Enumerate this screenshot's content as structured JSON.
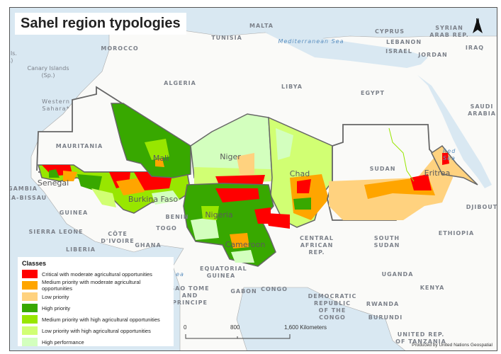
{
  "title": "Sahel region typologies",
  "legend": {
    "heading": "Classes",
    "items": [
      {
        "label": "Critical with moderate agricultural opportunities",
        "color": "#ff0000"
      },
      {
        "label": "Medium priority with moderate agricultural opportunities",
        "color": "#ffa500"
      },
      {
        "label": "Low priority",
        "color": "#ffd27f"
      },
      {
        "label": "High priority",
        "color": "#38a800"
      },
      {
        "label": "Medium priority with high agricultural opportunities",
        "color": "#98e600"
      },
      {
        "label": "Low priority with high agricultural opportunities",
        "color": "#d1ff73"
      },
      {
        "label": "High performance",
        "color": "#d3ffbe"
      }
    ]
  },
  "scale_bar": {
    "ticks": [
      "0",
      "800",
      "1,600 Kilometers"
    ]
  },
  "credit": "Produced by United Nations Geospatial",
  "north_arrow": {
    "label": "N",
    "icon": "north-arrow-icon"
  },
  "countries": [
    "MOROCCO",
    "ALGERIA",
    "TUNISIA",
    "MALTA",
    "LIBYA",
    "EGYPT",
    "CYPRUS",
    "LEBANON",
    "ISRAEL",
    "JORDAN",
    "SYRIAN ARAB REP.",
    "IRAQ",
    "SAUDI ARABIA",
    "Western Sahara*",
    "Canary Islands (Sp.)",
    "ra Is. t.)",
    "MAURITANIA",
    "GAMBIA",
    "NEA-BISSAU",
    "GUINEA",
    "SIERRA LEONE",
    "LIBERIA",
    "CÔTE D'IVOIRE",
    "GHANA",
    "TOGO",
    "BENIN",
    "CENTRAL AFRICAN REP.",
    "SOUTH SUDAN",
    "ETHIOPIA",
    "DJIBOUTI",
    "EQUATORIAL GUINEA",
    "SAO TOME AND PRINCIPE",
    "GABON",
    "CONGO",
    "DEMOCRATIC REPUBLIC OF THE CONGO",
    "UGANDA",
    "RWANDA",
    "BURUNDI",
    "KENYA",
    "UNITED REP. OF TANZANIA",
    "SUDAN"
  ],
  "seas": [
    "Mediterranean Sea",
    "Red Sea",
    "ea"
  ],
  "sahel_countries": [
    "Mali",
    "Niger",
    "Chad",
    "Senegal",
    "Burkina Faso",
    "Nigeria",
    "Cameroon",
    "Eritrea"
  ]
}
